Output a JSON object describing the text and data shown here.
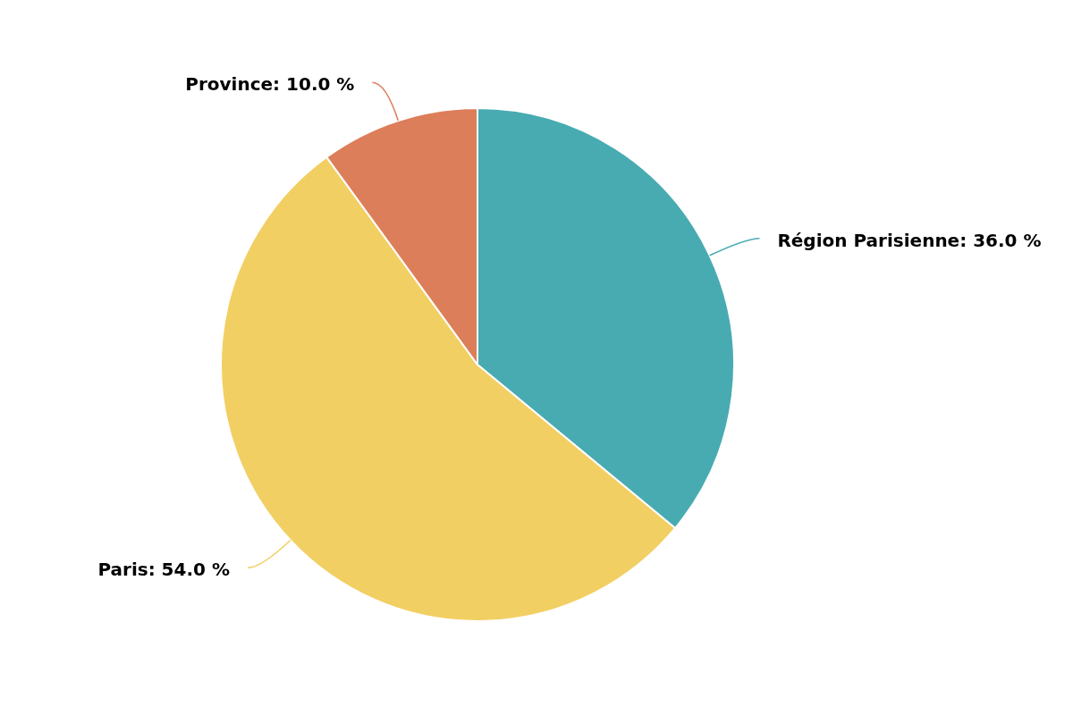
{
  "chart_data": {
    "type": "pie",
    "categories": [
      "Région Parisienne",
      "Paris",
      "Province"
    ],
    "values": [
      36,
      54,
      10
    ],
    "value_labels": [
      "36.0 %",
      "54.0 %",
      "10.0 %"
    ],
    "colors": [
      "#48abb2",
      "#f2cf63",
      "#dd7e5a"
    ],
    "legend": false
  }
}
